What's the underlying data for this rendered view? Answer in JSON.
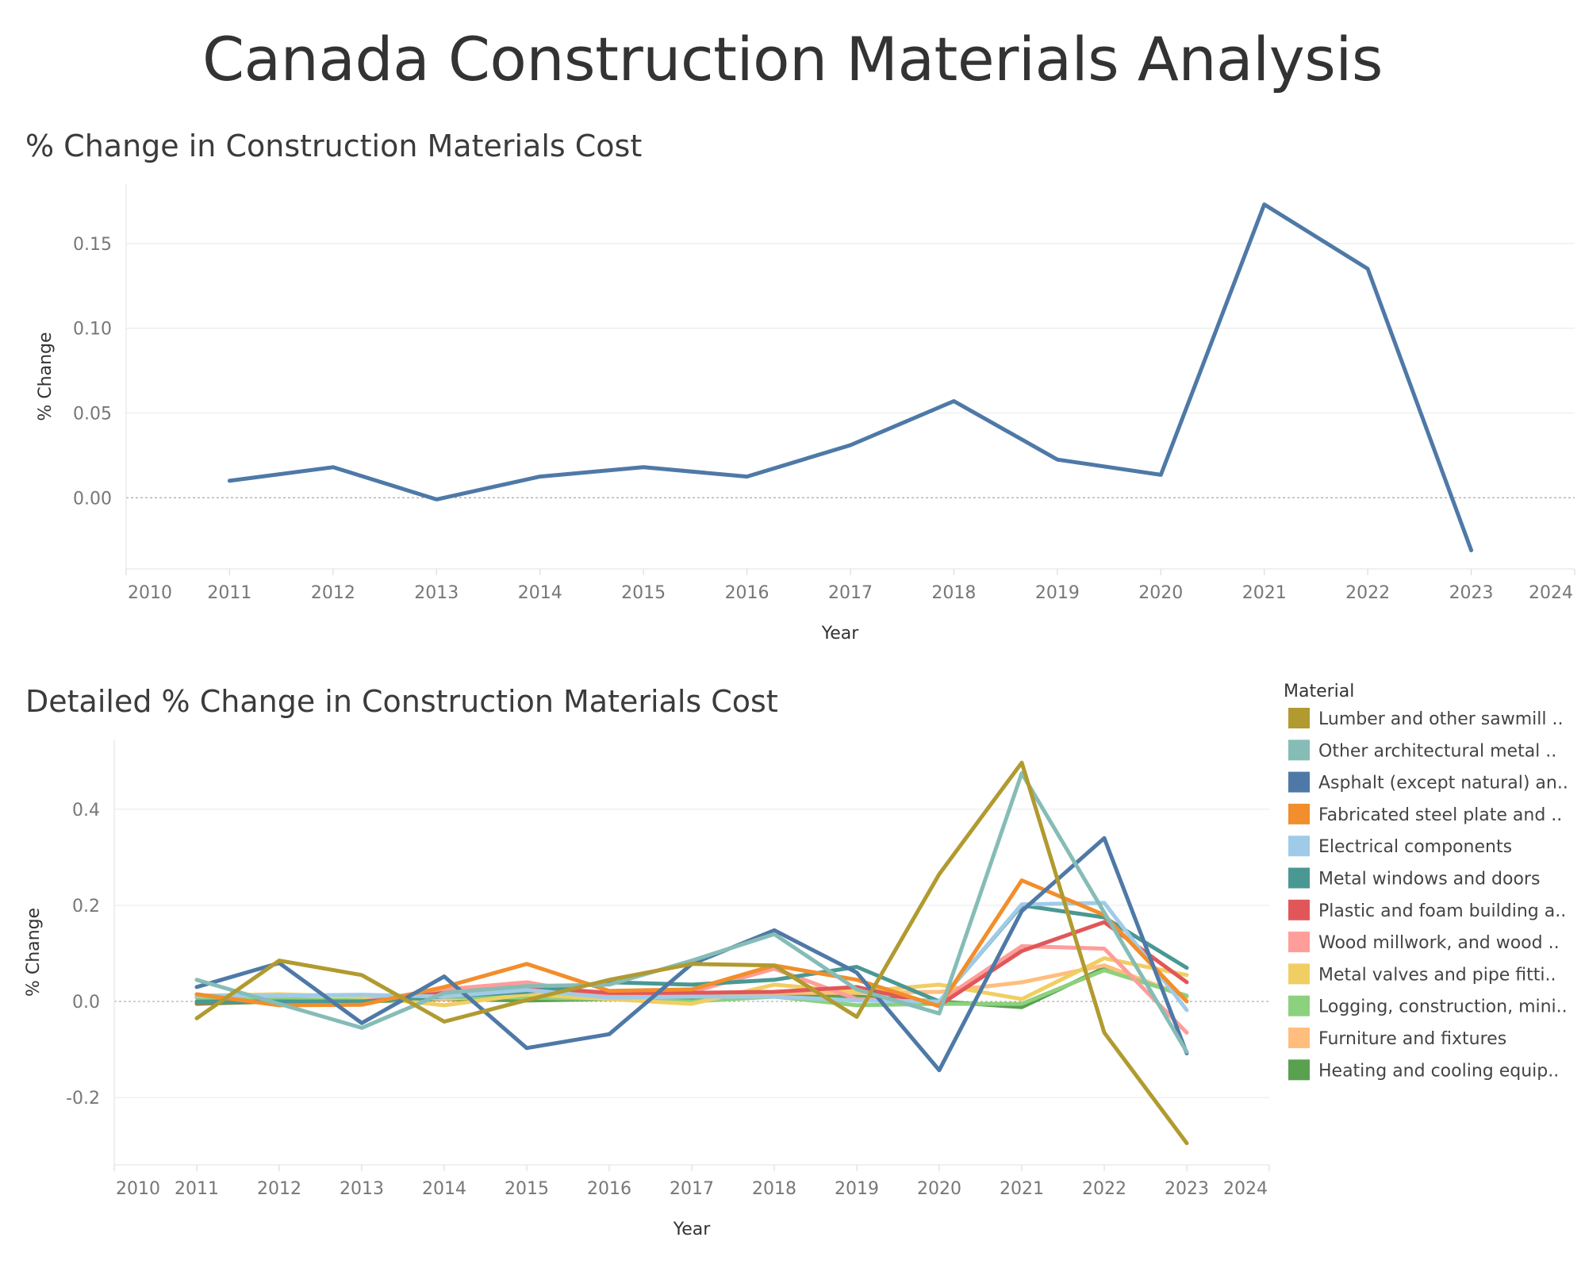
{
  "page": {
    "title": "Canada Construction Materials Analysis"
  },
  "chart_data": [
    {
      "type": "line",
      "title": "% Change in Construction Materials Cost",
      "xlabel": "Year",
      "ylabel": "% Change",
      "xlim": [
        2010,
        2024
      ],
      "ylim": [
        -0.042,
        0.185
      ],
      "yticks": [
        "-0.05",
        "0.00",
        "0.05",
        "0.10",
        "0.15"
      ],
      "ytick_values": [
        0.0,
        0.05,
        0.1,
        0.15
      ],
      "ytick_labels": [
        "0.00",
        "0.05",
        "0.10",
        "0.15"
      ],
      "xticks": [
        "2010",
        "2011",
        "2012",
        "2013",
        "2014",
        "2015",
        "2016",
        "2017",
        "2018",
        "2019",
        "2020",
        "2021",
        "2022",
        "2023",
        "2024"
      ],
      "zero_line": true,
      "series": [
        {
          "color": "#4e79a7",
          "x": [
            2011,
            2012,
            2013,
            2014,
            2015,
            2016,
            2017,
            2018,
            2019,
            2020,
            2021,
            2022,
            2023
          ],
          "values": [
            0.01,
            0.018,
            -0.001,
            0.0125,
            0.018,
            0.0125,
            0.031,
            0.057,
            0.0225,
            0.0135,
            0.173,
            0.135,
            -0.031
          ]
        }
      ]
    },
    {
      "type": "line",
      "title": "Detailed % Change in Construction Materials Cost",
      "xlabel": "Year",
      "ylabel": "% Change",
      "xlim": [
        2010,
        2024
      ],
      "ylim": [
        -0.34,
        0.545
      ],
      "ytick_values": [
        -0.2,
        0.0,
        0.2,
        0.4
      ],
      "ytick_labels": [
        "-0.2",
        "0.0",
        "0.2",
        "0.4"
      ],
      "xticks": [
        "2010",
        "2011",
        "2012",
        "2013",
        "2014",
        "2015",
        "2016",
        "2017",
        "2018",
        "2019",
        "2020",
        "2021",
        "2022",
        "2023",
        "2024"
      ],
      "zero_line": true,
      "legend_title": "Material",
      "legend_position": "right",
      "series": [
        {
          "name": "Lumber and other sawmill ..",
          "color": "#b19a30",
          "values": [
            -0.035,
            0.085,
            0.055,
            -0.042,
            0.003,
            0.045,
            0.078,
            0.075,
            -0.032,
            0.265,
            0.497,
            -0.065,
            -0.295
          ]
        },
        {
          "name": "Other architectural metal ..",
          "color": "#86bcb6",
          "values": [
            0.045,
            -0.005,
            -0.055,
            0.018,
            0.032,
            0.035,
            0.085,
            0.14,
            0.025,
            -0.025,
            0.475,
            0.185,
            -0.105
          ]
        },
        {
          "name": "Asphalt (except natural) an..",
          "color": "#4e79a7",
          "values": [
            0.03,
            0.08,
            -0.045,
            0.052,
            -0.097,
            -0.068,
            0.078,
            0.148,
            0.06,
            -0.143,
            0.188,
            0.34,
            -0.108
          ]
        },
        {
          "name": "Fabricated steel plate and ..",
          "color": "#f28e2b",
          "values": [
            0.015,
            -0.008,
            -0.007,
            0.03,
            0.078,
            0.022,
            0.025,
            0.075,
            0.045,
            -0.01,
            0.252,
            0.18,
            0.0
          ]
        },
        {
          "name": "Electrical components",
          "color": "#a0cbe8",
          "values": [
            0.012,
            0.012,
            0.014,
            0.01,
            0.024,
            0.008,
            0.01,
            0.01,
            0.002,
            0.0,
            0.202,
            0.205,
            -0.018
          ]
        },
        {
          "name": "Metal windows and doors",
          "color": "#499894",
          "values": [
            0.0,
            0.0,
            0.0,
            0.01,
            0.02,
            0.04,
            0.035,
            0.045,
            0.072,
            0.0,
            0.2,
            0.175,
            0.07
          ]
        },
        {
          "name": "Plastic and foam building a..",
          "color": "#e15759",
          "values": [
            -0.002,
            0.0,
            -0.002,
            0.018,
            0.03,
            0.018,
            0.018,
            0.02,
            0.03,
            -0.008,
            0.105,
            0.165,
            0.04
          ]
        },
        {
          "name": "Wood millwork, and wood ..",
          "color": "#ff9d9a",
          "values": [
            0.0,
            0.0,
            0.0,
            0.025,
            0.04,
            0.01,
            0.02,
            0.068,
            0.005,
            0.0,
            0.115,
            0.11,
            -0.065
          ]
        },
        {
          "name": "Metal valves and pipe fitti..",
          "color": "#f1ce63",
          "values": [
            0.012,
            0.015,
            0.01,
            -0.008,
            0.015,
            0.005,
            -0.005,
            0.035,
            0.02,
            0.035,
            0.005,
            0.09,
            0.055
          ]
        },
        {
          "name": "Logging, construction, mini..",
          "color": "#8cd17d",
          "values": [
            0.008,
            0.005,
            0.002,
            0.01,
            0.008,
            0.005,
            0.0,
            0.01,
            -0.008,
            -0.005,
            -0.005,
            0.065,
            0.012
          ]
        },
        {
          "name": "Furniture and fixtures",
          "color": "#ffbe7d",
          "values": [
            0.01,
            0.012,
            0.012,
            0.005,
            0.015,
            0.01,
            0.012,
            0.018,
            0.018,
            0.02,
            0.04,
            0.075,
            0.01
          ]
        },
        {
          "name": "Heating and cooling equip..",
          "color": "#59a14f",
          "values": [
            -0.005,
            0.0,
            0.0,
            0.005,
            0.002,
            0.005,
            0.005,
            0.01,
            0.01,
            0.0,
            -0.012,
            0.07,
            0.01
          ]
        }
      ],
      "x": [
        2011,
        2012,
        2013,
        2014,
        2015,
        2016,
        2017,
        2018,
        2019,
        2020,
        2021,
        2022,
        2023
      ]
    }
  ]
}
